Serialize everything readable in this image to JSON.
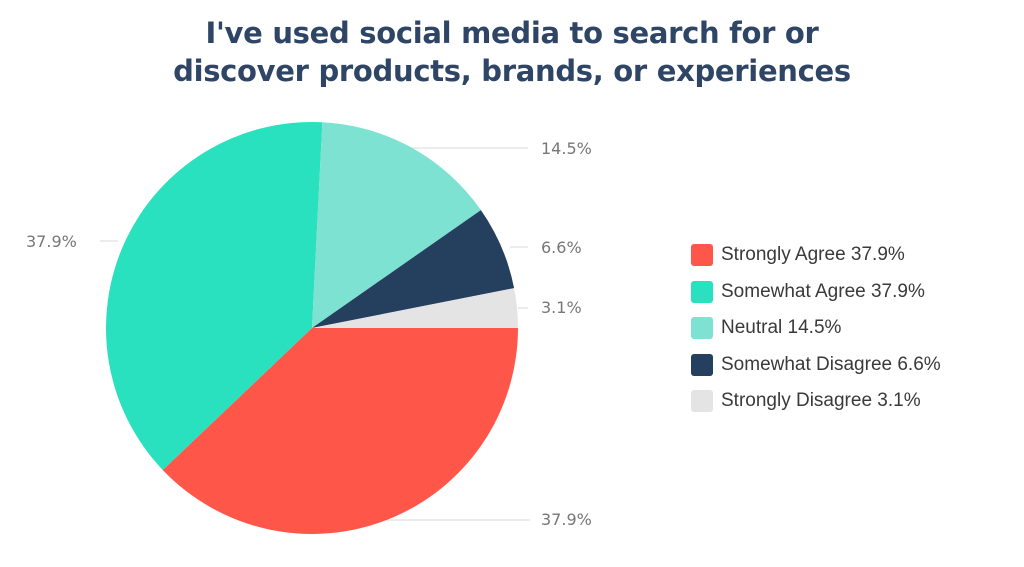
{
  "chart_data": {
    "type": "pie",
    "title": "I've used social media to search for or discover products, brands, or experiences",
    "title_lines": [
      "I've used social media to search for or",
      "discover products, brands, or experiences"
    ],
    "categories": [
      "Strongly Agree",
      "Somewhat Agree",
      "Neutral",
      "Somewhat Disagree",
      "Strongly Disagree"
    ],
    "values": [
      37.9,
      37.9,
      14.5,
      6.6,
      3.1
    ],
    "colors": [
      "#ff564a",
      "#29e0bf",
      "#7de2d1",
      "#253f5e",
      "#e4e4e4"
    ],
    "data_labels": [
      "37.9%",
      "37.9%",
      "14.5%",
      "6.6%",
      "3.1%"
    ],
    "legend_labels": [
      "Strongly Agree 37.9%",
      "Somewhat Agree 37.9%",
      "Neutral 14.5%",
      "Somewhat Disagree 6.6%",
      "Strongly Disagree 3.1%"
    ],
    "legend_position": "right",
    "start_angle": "3 o'clock, clockwise"
  }
}
